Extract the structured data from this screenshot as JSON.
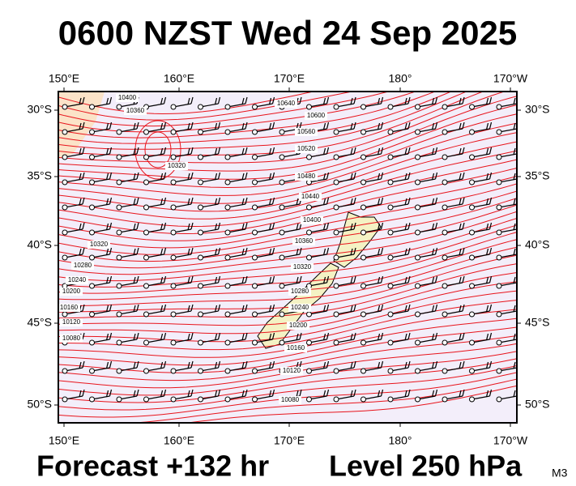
{
  "header": {
    "title": "0600 NZST Wed 24 Sep 2025"
  },
  "map": {
    "lon_labels": [
      "150°E",
      "160°E",
      "170°E",
      "180°",
      "170°W"
    ],
    "lat_labels": [
      "30°S",
      "35°S",
      "40°S",
      "45°S",
      "50°S"
    ],
    "contour_labels": [
      "10400",
      "10360",
      "10320",
      "10640",
      "10600",
      "10560",
      "10520",
      "10480",
      "10440",
      "10400",
      "10360",
      "10320",
      "10280",
      "10240",
      "10200",
      "10160",
      "10120",
      "10080",
      "10320",
      "10280",
      "10240",
      "10200",
      "10160",
      "10120",
      "10080"
    ]
  },
  "footer": {
    "forecast": "Forecast +132 hr",
    "level": "Level 250 hPa",
    "code": "M3"
  }
}
